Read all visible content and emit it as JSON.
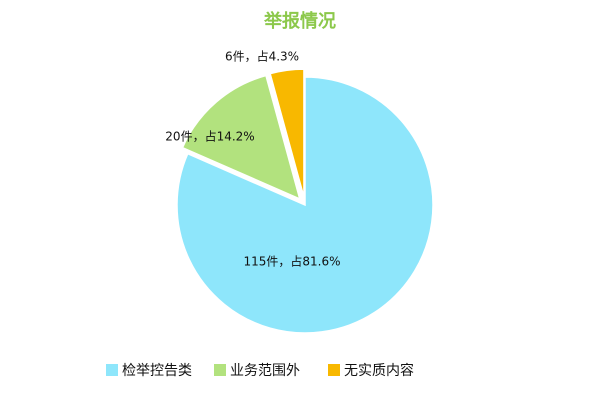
{
  "chart_data": {
    "type": "pie",
    "title": "举报情况",
    "categories": [
      "检举控告类",
      "业务范围外",
      "无实质内容"
    ],
    "values": [
      115,
      20,
      6
    ],
    "value_labels": [
      "115件，占81.6%",
      "20件，占14.2%",
      "6件，占4.3%"
    ],
    "colors": [
      "#8ee6fb",
      "#b2e27e",
      "#f8b800"
    ]
  }
}
